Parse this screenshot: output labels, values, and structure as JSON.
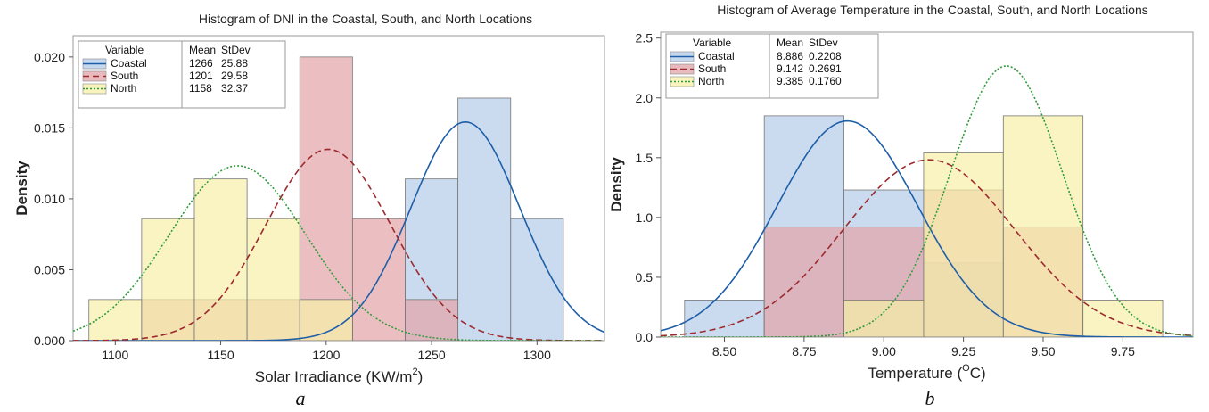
{
  "chart_data": [
    {
      "type": "histogram",
      "title": "Histogram of DNI in the Coastal, South, and North Locations",
      "xlabel": "Solar Irradiance (KW/m",
      "xlabel_sup": "2",
      "xlabel_end": ")",
      "ylabel": "Density",
      "xlim": [
        1080,
        1332
      ],
      "ylim": [
        0,
        0.0215
      ],
      "xticks": [
        1100,
        1150,
        1200,
        1250,
        1300
      ],
      "xtick_labels": [
        "1100",
        "1150",
        "1200",
        "1250",
        "1300"
      ],
      "yticks": [
        0,
        0.005,
        0.01,
        0.015,
        0.02
      ],
      "ytick_labels": [
        "0.000",
        "0.005",
        "0.010",
        "0.015",
        "0.020"
      ],
      "legend": {
        "position": "top-left",
        "header": [
          "Variable",
          "Mean",
          "StDev"
        ],
        "rows": [
          {
            "name": "Coastal",
            "mean": "1266",
            "stdev": "25.88"
          },
          {
            "name": "South",
            "mean": "1201",
            "stdev": "29.58"
          },
          {
            "name": "North",
            "mean": "1158",
            "stdev": "32.37"
          }
        ]
      },
      "bin_edges": [
        1087.5,
        1112.5,
        1137.5,
        1162.5,
        1187.5,
        1212.5,
        1237.5,
        1262.5,
        1287.5,
        1312.5
      ],
      "series": [
        {
          "name": "Coastal",
          "fill": "#b3cce8",
          "line": "#1f5fa8",
          "dash": "none",
          "mean": 1266,
          "sd": 25.88,
          "values": [
            0,
            0,
            0,
            0,
            0,
            0,
            0.0114,
            0.0171,
            0.0086
          ]
        },
        {
          "name": "South",
          "fill": "#e2a4a8",
          "line": "#9c2a2e",
          "dash": "7,4",
          "mean": 1201,
          "sd": 29.58,
          "values": [
            0,
            0.0029,
            0.0029,
            0.0029,
            0.02,
            0.0086,
            0.0029,
            0,
            0
          ]
        },
        {
          "name": "North",
          "fill": "#f7f0a8",
          "line": "#2e9c3a",
          "dash": "2,2",
          "mean": 1158,
          "sd": 32.37,
          "values": [
            0.0029,
            0.0086,
            0.0114,
            0.0086,
            0.0029,
            0,
            0,
            0,
            0
          ]
        }
      ],
      "sublabel": "a"
    },
    {
      "type": "histogram",
      "title": "Histogram of Average Temperature in the Coastal, South, and North Locations",
      "xlabel": "Temperature (",
      "xlabel_sup": "O",
      "xlabel_end": "C)",
      "ylabel": "Density",
      "xlim": [
        8.3,
        9.97
      ],
      "ylim": [
        0,
        2.55
      ],
      "xticks": [
        8.5,
        8.75,
        9.0,
        9.25,
        9.5,
        9.75
      ],
      "xtick_labels": [
        "8.50",
        "8.75",
        "9.00",
        "9.25",
        "9.50",
        "9.75"
      ],
      "yticks": [
        0,
        0.5,
        1.0,
        1.5,
        2.0,
        2.5
      ],
      "ytick_labels": [
        "0.0",
        "0.5",
        "1.0",
        "1.5",
        "2.0",
        "2.5"
      ],
      "legend": {
        "position": "top-left",
        "header": [
          "Variable",
          "Mean",
          "StDev"
        ],
        "rows": [
          {
            "name": "Coastal",
            "mean": "8.886",
            "stdev": "0.2208"
          },
          {
            "name": "South",
            "mean": "9.142",
            "stdev": "0.2691"
          },
          {
            "name": "North",
            "mean": "9.385",
            "stdev": "0.1760"
          }
        ]
      },
      "bin_edges": [
        8.375,
        8.625,
        8.875,
        9.125,
        9.375,
        9.625,
        9.875
      ],
      "series": [
        {
          "name": "Coastal",
          "fill": "#b3cce8",
          "line": "#1f5fa8",
          "dash": "none",
          "mean": 8.886,
          "sd": 0.2208,
          "values": [
            0.31,
            1.85,
            1.23,
            0.62,
            0,
            0
          ]
        },
        {
          "name": "South",
          "fill": "#e2a4a8",
          "line": "#9c2a2e",
          "dash": "7,4",
          "mean": 9.142,
          "sd": 0.2691,
          "values": [
            0,
            0.92,
            0.92,
            1.23,
            0.92,
            0
          ]
        },
        {
          "name": "North",
          "fill": "#f7f0a8",
          "line": "#2e9c3a",
          "dash": "2,2",
          "mean": 9.385,
          "sd": 0.176,
          "values": [
            0,
            0,
            0.31,
            1.54,
            1.85,
            0.31
          ]
        }
      ],
      "sublabel": "b"
    }
  ]
}
